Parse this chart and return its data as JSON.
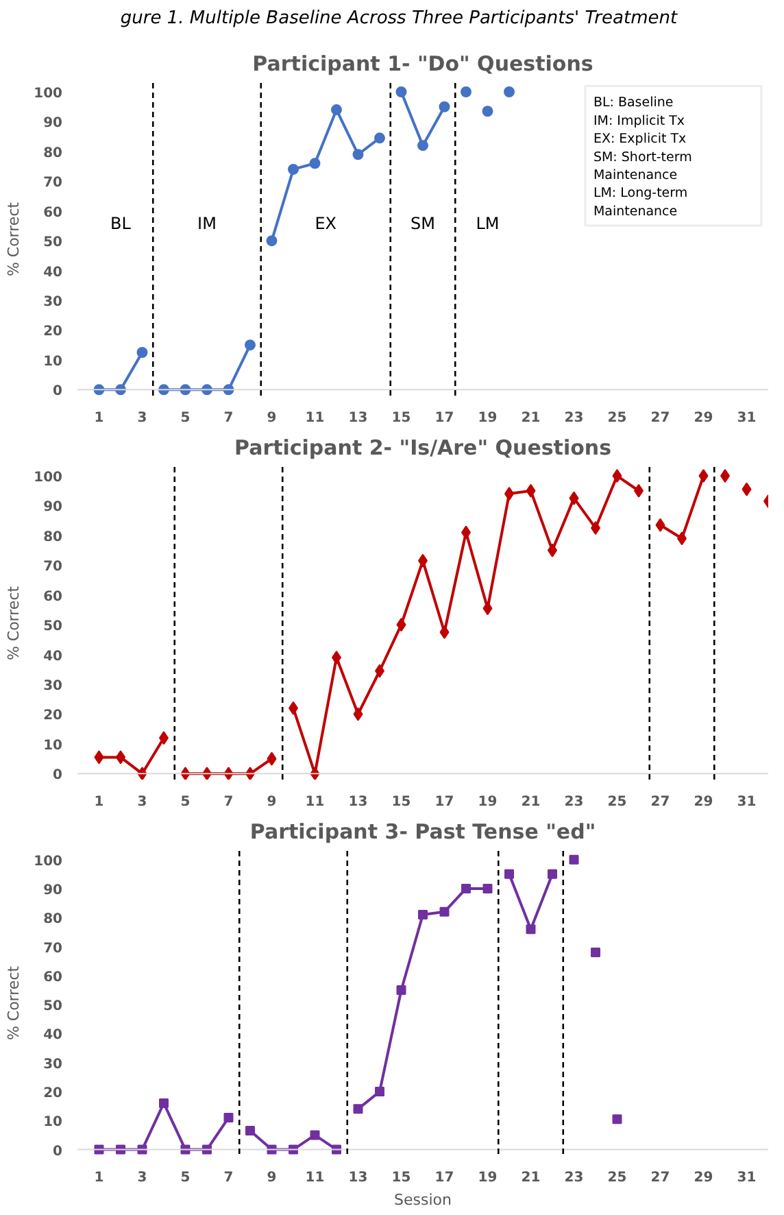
{
  "chart_data": [
    {
      "type": "line",
      "title": "Participant 1- \"Do\" Questions",
      "ylabel": "% Correct",
      "marker": "circle",
      "grid": false,
      "xlim": [
        0,
        32
      ],
      "xticks": [
        1,
        3,
        5,
        7,
        9,
        11,
        13,
        15,
        17,
        19,
        21,
        23,
        25,
        27,
        29,
        31
      ],
      "ylim": [
        -2,
        103
      ],
      "yticks": [
        0,
        10,
        20,
        30,
        40,
        50,
        60,
        70,
        80,
        90,
        100
      ],
      "annotations": [
        "gure 1. Multiple Baseline Across Three Participants' Treatment",
        "BL: Baseline",
        "IM: Implicit Tx",
        "EX: Explicit Tx",
        "SM: Short-term Maintenance",
        "LM: Long-term Maintenance",
        "BL",
        "IM",
        "EX",
        "SM",
        "LM"
      ],
      "ref_lines": [
        {
          "axis": "x",
          "value": 3.5,
          "line_style": "dashed",
          "color": "#000000"
        },
        {
          "axis": "x",
          "value": 8.5,
          "line_style": "dashed",
          "color": "#000000"
        },
        {
          "axis": "x",
          "value": 14.5,
          "line_style": "dashed",
          "color": "#000000"
        },
        {
          "axis": "x",
          "value": 17.5,
          "line_style": "dashed",
          "color": "#000000"
        }
      ],
      "series": [
        {
          "color": "#4472c4",
          "x": [
            1,
            2,
            3
          ],
          "values": [
            0,
            0,
            12.5
          ]
        },
        {
          "color": "#4472c4",
          "x": [
            4,
            5,
            6,
            7,
            8
          ],
          "values": [
            0,
            0,
            0,
            0,
            15
          ]
        },
        {
          "color": "#4472c4",
          "x": [
            9,
            10,
            11,
            12,
            13,
            14
          ],
          "values": [
            50,
            74,
            76,
            94,
            79,
            84.5
          ]
        },
        {
          "color": "#4472c4",
          "x": [
            15,
            16,
            17
          ],
          "values": [
            100,
            82,
            95
          ]
        },
        {
          "type": "scatter",
          "color": "#4472c4",
          "x": [
            18,
            19,
            20
          ],
          "values": [
            100,
            93.5,
            100
          ]
        }
      ]
    },
    {
      "type": "line",
      "title": "Participant 2- \"Is/Are\" Questions",
      "ylabel": "% Correct",
      "marker": "diamond",
      "grid": false,
      "xlim": [
        0,
        32
      ],
      "xticks": [
        1,
        3,
        5,
        7,
        9,
        11,
        13,
        15,
        17,
        19,
        21,
        23,
        25,
        27,
        29,
        31
      ],
      "ylim": [
        -2,
        103
      ],
      "yticks": [
        0,
        10,
        20,
        30,
        40,
        50,
        60,
        70,
        80,
        90,
        100
      ],
      "ref_lines": [
        {
          "axis": "x",
          "value": 4.5,
          "line_style": "dashed",
          "color": "#000000"
        },
        {
          "axis": "x",
          "value": 9.5,
          "line_style": "dashed",
          "color": "#000000"
        },
        {
          "axis": "x",
          "value": 26.5,
          "line_style": "dashed",
          "color": "#000000"
        },
        {
          "axis": "x",
          "value": 29.5,
          "line_style": "dashed",
          "color": "#000000"
        }
      ],
      "series": [
        {
          "color": "#c00000",
          "x": [
            1,
            2,
            3,
            4
          ],
          "values": [
            5.5,
            5.5,
            0,
            12
          ]
        },
        {
          "color": "#c00000",
          "x": [
            5,
            6,
            7,
            8,
            9
          ],
          "values": [
            0,
            0,
            0,
            0,
            5
          ]
        },
        {
          "color": "#c00000",
          "x": [
            10,
            11,
            12,
            13,
            14,
            15,
            16,
            17,
            18,
            19,
            20,
            21,
            22,
            23,
            24,
            25,
            26
          ],
          "values": [
            22,
            0,
            39,
            20,
            34.5,
            50,
            71.5,
            47.5,
            81,
            55.5,
            94,
            95,
            75,
            92.5,
            82.5,
            100,
            95
          ]
        },
        {
          "color": "#c00000",
          "x": [
            27,
            28,
            29
          ],
          "values": [
            83.5,
            79,
            100
          ]
        },
        {
          "type": "scatter",
          "color": "#c00000",
          "x": [
            30,
            31,
            32
          ],
          "values": [
            100,
            95.5,
            91.5
          ]
        }
      ]
    },
    {
      "type": "line",
      "title": "Participant 3- Past Tense \"ed\"",
      "ylabel": "% Correct",
      "xlabel": "Session",
      "marker": "square",
      "grid": false,
      "xlim": [
        0,
        32
      ],
      "xticks": [
        1,
        3,
        5,
        7,
        9,
        11,
        13,
        15,
        17,
        19,
        21,
        23,
        25,
        27,
        29,
        31
      ],
      "ylim": [
        -2,
        103
      ],
      "yticks": [
        0,
        10,
        20,
        30,
        40,
        50,
        60,
        70,
        80,
        90,
        100
      ],
      "ref_lines": [
        {
          "axis": "x",
          "value": 7.5,
          "line_style": "dashed",
          "color": "#000000"
        },
        {
          "axis": "x",
          "value": 12.5,
          "line_style": "dashed",
          "color": "#000000"
        },
        {
          "axis": "x",
          "value": 19.5,
          "line_style": "dashed",
          "color": "#000000"
        },
        {
          "axis": "x",
          "value": 22.5,
          "line_style": "dashed",
          "color": "#000000"
        }
      ],
      "series": [
        {
          "color": "#7030a0",
          "x": [
            1,
            2,
            3,
            4,
            5,
            6,
            7
          ],
          "values": [
            0,
            0,
            0,
            16,
            0,
            0,
            11
          ]
        },
        {
          "color": "#7030a0",
          "x": [
            8,
            9,
            10,
            11,
            12
          ],
          "values": [
            6.5,
            0,
            0,
            5,
            0
          ]
        },
        {
          "color": "#7030a0",
          "x": [
            13,
            14,
            15,
            16,
            17,
            18,
            19
          ],
          "values": [
            14,
            20,
            55,
            81,
            82,
            90,
            90
          ]
        },
        {
          "color": "#7030a0",
          "x": [
            20,
            21,
            22
          ],
          "values": [
            95,
            76,
            95
          ]
        },
        {
          "type": "scatter",
          "color": "#7030a0",
          "x": [
            23,
            24,
            25
          ],
          "values": [
            100,
            68,
            10.5
          ]
        }
      ]
    }
  ]
}
